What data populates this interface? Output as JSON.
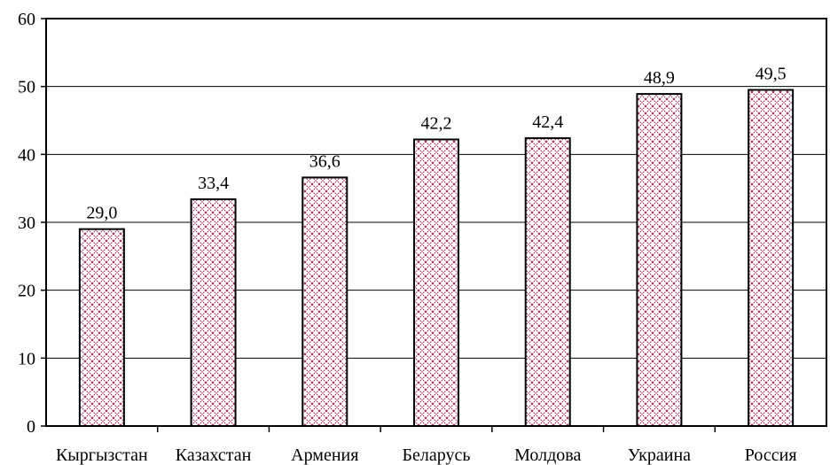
{
  "chart_data": {
    "type": "bar",
    "title": "",
    "xlabel": "",
    "ylabel": "",
    "categories": [
      "Кыргызстан",
      "Казахстан",
      "Армения",
      "Беларусь",
      "Молдова",
      "Украина",
      "Россия"
    ],
    "values": [
      29.0,
      33.4,
      36.6,
      42.2,
      42.4,
      48.9,
      49.5
    ],
    "value_labels": [
      "29,0",
      "33,4",
      "36,6",
      "42,2",
      "42,4",
      "48,9",
      "49,5"
    ],
    "ylim": [
      0,
      60
    ],
    "yticks": [
      0,
      10,
      20,
      30,
      40,
      50,
      60
    ],
    "grid": true,
    "legend": "none",
    "bar_fill_pattern": "crosshatch",
    "colors": {
      "bar_pattern": "#993366",
      "bar_outline": "#000000",
      "gridline": "#000000",
      "background": "#ffffff"
    }
  }
}
